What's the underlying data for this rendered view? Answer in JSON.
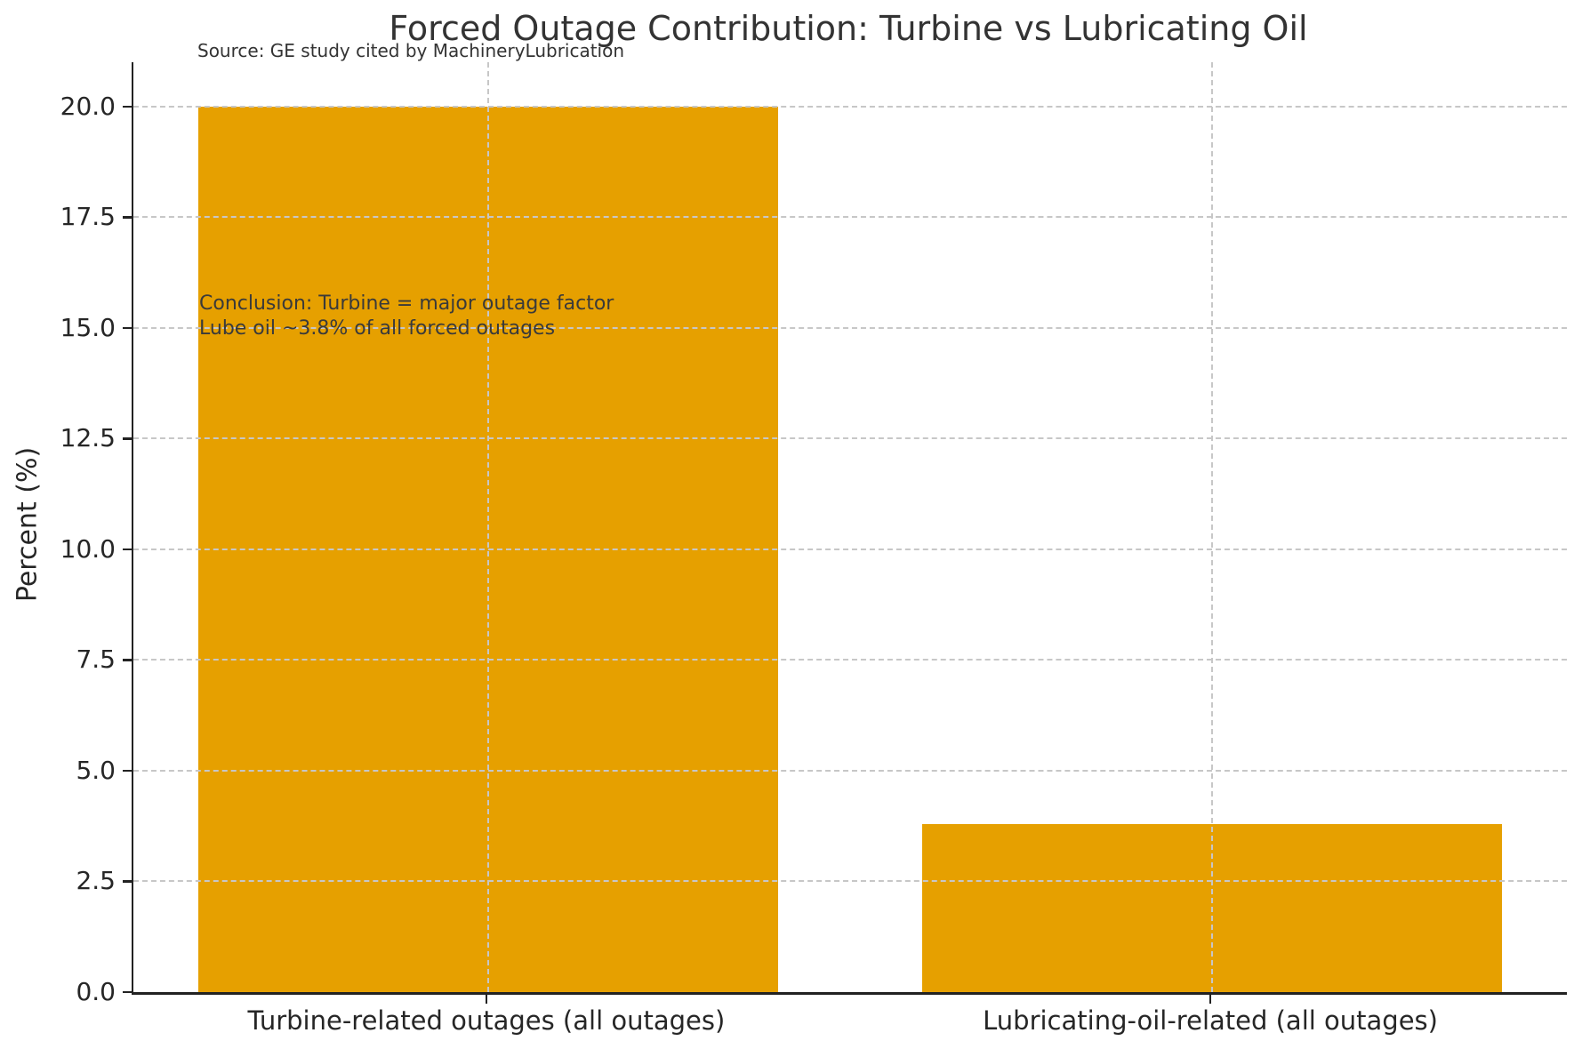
{
  "title": "Forced Outage Contribution: Turbine vs Lubricating Oil",
  "subtitle": "Source: GE study cited by MachineryLubrication",
  "annotation": {
    "line1": "Conclusion: Turbine = major outage factor",
    "line2": "Lube oil ~3.8% of all forced outages"
  },
  "chart_data": {
    "type": "bar",
    "title": "Forced Outage Contribution: Turbine vs Lubricating Oil",
    "categories": [
      "Turbine-related outages (all outages)",
      "Lubricating-oil-related (all outages)"
    ],
    "values": [
      20.0,
      3.8
    ],
    "xlabel": "",
    "ylabel": "Percent (%)",
    "ylim": [
      0,
      21
    ],
    "xlim": [
      -0.49,
      1.49
    ],
    "yticks": [
      0.0,
      2.5,
      5.0,
      7.5,
      10.0,
      12.5,
      15.0,
      17.5,
      20.0
    ],
    "ytick_labels": [
      "0.0",
      "2.5",
      "5.0",
      "7.5",
      "10.0",
      "12.5",
      "15.0",
      "17.5",
      "20.0"
    ],
    "bar_width_units": 0.8,
    "grid": "both, dashed, above bars",
    "legend": "none",
    "colors": {
      "bar": "#E6A000",
      "grid": "#c7c7c7",
      "axis": "#222222",
      "text": "#262626",
      "background": "#ffffff"
    }
  }
}
